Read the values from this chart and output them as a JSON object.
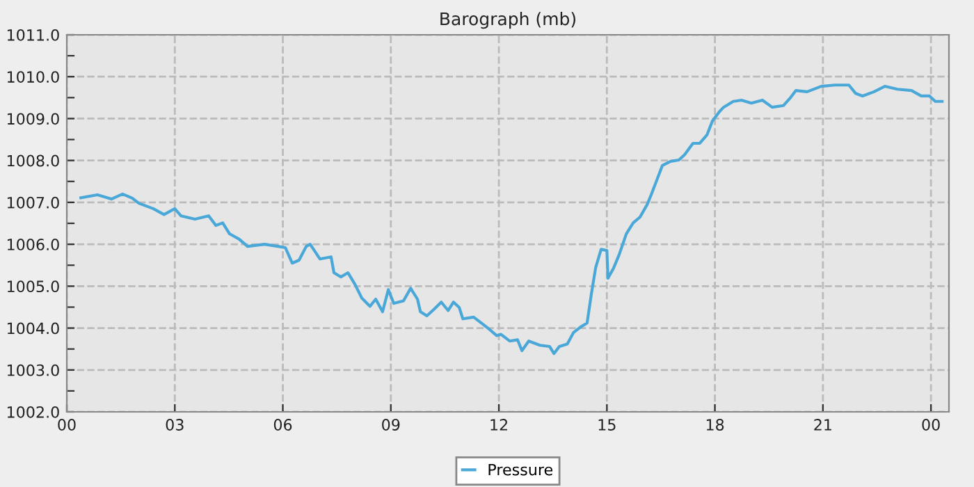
{
  "chart_data": {
    "type": "line",
    "title": "Barograph (mb)",
    "x": [
      0.39,
      0.85,
      1.24,
      1.55,
      1.82,
      2.0,
      2.4,
      2.7,
      3.0,
      3.17,
      3.56,
      3.94,
      4.14,
      4.33,
      4.52,
      4.79,
      5.02,
      5.49,
      5.87,
      6.07,
      6.26,
      6.45,
      6.65,
      6.76,
      7.03,
      7.34,
      7.42,
      7.61,
      7.81,
      8.0,
      8.19,
      8.42,
      8.58,
      8.77,
      8.93,
      9.08,
      9.35,
      9.55,
      9.74,
      9.82,
      10.0,
      10.2,
      10.4,
      10.59,
      10.74,
      10.9,
      11.0,
      11.3,
      11.56,
      11.75,
      11.94,
      12.06,
      12.3,
      12.52,
      12.64,
      12.83,
      13.14,
      13.41,
      13.53,
      13.68,
      13.9,
      14.07,
      14.26,
      14.45,
      14.57,
      14.69,
      14.84,
      15.0,
      15.03,
      15.18,
      15.34,
      15.54,
      15.73,
      15.92,
      16.12,
      16.23,
      16.39,
      16.54,
      16.77,
      17.0,
      17.16,
      17.39,
      17.58,
      17.78,
      17.93,
      18.13,
      18.24,
      18.51,
      18.74,
      19.01,
      19.32,
      19.59,
      19.9,
      20.1,
      20.25,
      20.56,
      20.95,
      21.33,
      21.72,
      21.91,
      22.1,
      22.42,
      22.72,
      23.07,
      23.46,
      23.73,
      23.96,
      24.12,
      24.31
    ],
    "series": [
      {
        "name": "Pressure",
        "color": "#4aa8d8",
        "values": [
          1007.11,
          1007.18,
          1007.08,
          1007.2,
          1007.1,
          1006.98,
          1006.85,
          1006.71,
          1006.85,
          1006.68,
          1006.6,
          1006.68,
          1006.45,
          1006.51,
          1006.25,
          1006.12,
          1005.95,
          1006.0,
          1005.95,
          1005.92,
          1005.55,
          1005.62,
          1005.95,
          1006.0,
          1005.65,
          1005.7,
          1005.32,
          1005.22,
          1005.32,
          1005.05,
          1004.72,
          1004.52,
          1004.69,
          1004.39,
          1004.92,
          1004.59,
          1004.65,
          1004.95,
          1004.69,
          1004.39,
          1004.29,
          1004.45,
          1004.62,
          1004.42,
          1004.62,
          1004.49,
          1004.22,
          1004.26,
          1004.09,
          1003.96,
          1003.82,
          1003.85,
          1003.69,
          1003.72,
          1003.46,
          1003.69,
          1003.59,
          1003.56,
          1003.39,
          1003.56,
          1003.62,
          1003.89,
          1004.02,
          1004.12,
          1004.82,
          1005.45,
          1005.88,
          1005.85,
          1005.19,
          1005.42,
          1005.75,
          1006.25,
          1006.51,
          1006.65,
          1006.95,
          1007.18,
          1007.54,
          1007.88,
          1007.98,
          1008.01,
          1008.14,
          1008.41,
          1008.41,
          1008.61,
          1008.94,
          1009.17,
          1009.27,
          1009.41,
          1009.44,
          1009.37,
          1009.44,
          1009.27,
          1009.31,
          1009.5,
          1009.67,
          1009.64,
          1009.77,
          1009.8,
          1009.8,
          1009.6,
          1009.54,
          1009.64,
          1009.77,
          1009.7,
          1009.67,
          1009.54,
          1009.54,
          1009.41,
          1009.41
        ]
      }
    ],
    "xlim": [
      0,
      24.5
    ],
    "xticks": [
      {
        "value": 0,
        "label": "00"
      },
      {
        "value": 3,
        "label": "03"
      },
      {
        "value": 6,
        "label": "06"
      },
      {
        "value": 9,
        "label": "09"
      },
      {
        "value": 12,
        "label": "12"
      },
      {
        "value": 15,
        "label": "15"
      },
      {
        "value": 18,
        "label": "18"
      },
      {
        "value": 21,
        "label": "21"
      },
      {
        "value": 24,
        "label": "00"
      }
    ],
    "ylim": [
      1002,
      1011
    ],
    "yticks": [
      {
        "value": 1002,
        "label": "1002.0"
      },
      {
        "value": 1002.5,
        "label": null
      },
      {
        "value": 1003,
        "label": "1003.0"
      },
      {
        "value": 1003.5,
        "label": null
      },
      {
        "value": 1004,
        "label": "1004.0"
      },
      {
        "value": 1004.5,
        "label": null
      },
      {
        "value": 1005,
        "label": "1005.0"
      },
      {
        "value": 1005.5,
        "label": null
      },
      {
        "value": 1006,
        "label": "1006.0"
      },
      {
        "value": 1006.5,
        "label": null
      },
      {
        "value": 1007,
        "label": "1007.0"
      },
      {
        "value": 1007.5,
        "label": null
      },
      {
        "value": 1008,
        "label": "1008.0"
      },
      {
        "value": 1008.5,
        "label": null
      },
      {
        "value": 1009,
        "label": "1009.0"
      },
      {
        "value": 1009.5,
        "label": null
      },
      {
        "value": 1010,
        "label": "1010.0"
      },
      {
        "value": 1010.5,
        "label": null
      },
      {
        "value": 1011,
        "label": "1011.0"
      }
    ],
    "grid": true,
    "legend": "bottom",
    "marker": "none",
    "line_style": "solid"
  }
}
